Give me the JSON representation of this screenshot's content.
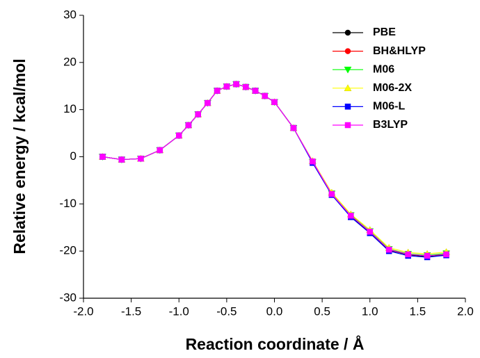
{
  "chart_data": {
    "type": "line",
    "xlabel": "Reaction coordinate / Å",
    "ylabel": "Relative energy / kcal/mol",
    "x": [
      -1.8,
      -1.6,
      -1.4,
      -1.2,
      -1.0,
      -0.9,
      -0.8,
      -0.7,
      -0.6,
      -0.5,
      -0.4,
      -0.3,
      -0.2,
      -0.1,
      0.0,
      0.2,
      0.4,
      0.6,
      0.8,
      1.0,
      1.2,
      1.4,
      1.6,
      1.8
    ],
    "series": [
      {
        "name": "PBE",
        "color": "#000000",
        "marker": "circle",
        "values": [
          0,
          -0.6,
          -0.4,
          1.4,
          4.5,
          6.7,
          9.0,
          11.4,
          14.0,
          14.9,
          15.4,
          14.8,
          14.0,
          12.9,
          11.6,
          6.1,
          -1.2,
          -8.0,
          -12.6,
          -16.0,
          -19.8,
          -20.8,
          -21.2,
          -20.8
        ]
      },
      {
        "name": "BH&HLYP",
        "color": "#ff0000",
        "marker": "circle",
        "values": [
          0,
          -0.6,
          -0.4,
          1.4,
          4.5,
          6.7,
          9.0,
          11.4,
          14.0,
          14.9,
          15.4,
          14.8,
          14.0,
          12.9,
          11.6,
          6.1,
          -1.1,
          -7.8,
          -12.4,
          -15.8,
          -19.6,
          -20.6,
          -21.0,
          -20.6
        ]
      },
      {
        "name": "M06",
        "color": "#00ff00",
        "marker": "triangle-down",
        "values": [
          0,
          -0.6,
          -0.4,
          1.4,
          4.5,
          6.7,
          9.0,
          11.4,
          14.0,
          14.9,
          15.4,
          14.8,
          14.0,
          12.9,
          11.6,
          6.1,
          -1.1,
          -7.8,
          -12.4,
          -15.8,
          -19.6,
          -20.6,
          -20.9,
          -20.5
        ]
      },
      {
        "name": "M06-2X",
        "color": "#ffff00",
        "marker": "triangle-up",
        "values": [
          0,
          -0.6,
          -0.4,
          1.4,
          4.5,
          6.7,
          9.0,
          11.4,
          14.0,
          14.9,
          15.4,
          14.8,
          14.0,
          12.9,
          11.6,
          6.1,
          -0.9,
          -7.6,
          -12.2,
          -15.5,
          -19.3,
          -20.3,
          -20.6,
          -20.2
        ]
      },
      {
        "name": "M06-L",
        "color": "#0000ff",
        "marker": "square",
        "values": [
          0,
          -0.6,
          -0.4,
          1.4,
          4.5,
          6.7,
          9.0,
          11.4,
          14.0,
          14.9,
          15.4,
          14.8,
          14.0,
          12.9,
          11.6,
          6.1,
          -1.3,
          -8.1,
          -12.8,
          -16.2,
          -20.0,
          -21.0,
          -21.3,
          -20.9
        ]
      },
      {
        "name": "B3LYP",
        "color": "#ff00ff",
        "marker": "square",
        "values": [
          0,
          -0.6,
          -0.4,
          1.4,
          4.5,
          6.7,
          9.0,
          11.4,
          14.0,
          14.9,
          15.4,
          14.8,
          14.0,
          12.9,
          11.6,
          6.1,
          -1.0,
          -7.9,
          -12.5,
          -15.9,
          -19.7,
          -20.7,
          -21.0,
          -20.7
        ]
      }
    ],
    "xlim": [
      -2,
      2
    ],
    "xticks": [
      {
        "value": -2,
        "label": "-2.0"
      },
      -1.5,
      {
        "value": -1,
        "label": "-1.0"
      },
      -0.5,
      {
        "value": 0,
        "label": "0.0"
      },
      0.5,
      {
        "value": 1,
        "label": "1.0"
      },
      1.5,
      {
        "value": 2,
        "label": "2.0"
      }
    ],
    "ylim": [
      -30,
      30
    ],
    "yticks": [
      -30,
      -20,
      -10,
      0,
      10,
      20,
      30
    ],
    "legend": "upper-right"
  }
}
